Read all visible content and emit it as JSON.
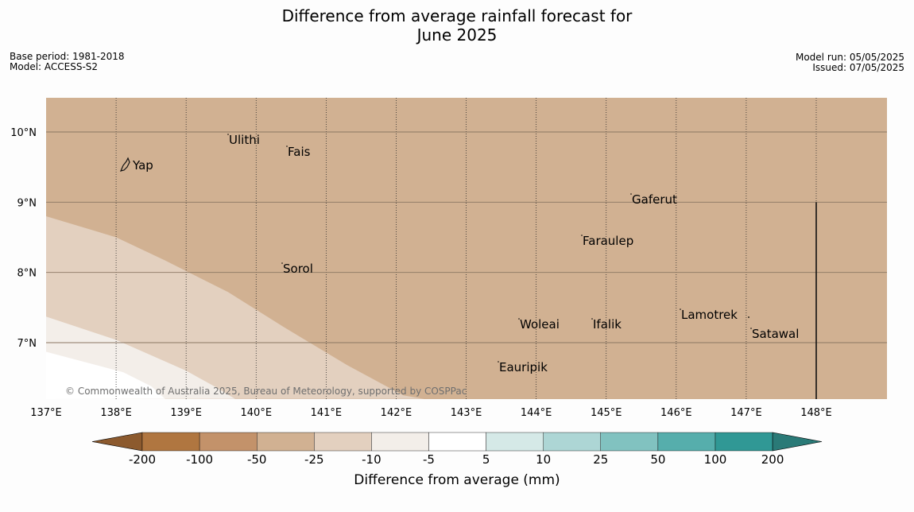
{
  "title_line1": "Difference from average rainfall forecast for",
  "title_line2": "June 2025",
  "meta_left": [
    "Base period: 1981-2018",
    "Model: ACCESS-S2"
  ],
  "meta_right": [
    "Model run: 05/05/2025",
    "Issued: 07/05/2025"
  ],
  "copyright": "© Commonwealth of Australia 2025, Bureau of Meteorology, supported by COSPPac",
  "colors": {
    "background_land": "#d1b192",
    "band_m25": "#e3d0bf",
    "band_m10": "#f3eee9",
    "grid_dotted": "#2a2a2a",
    "grid_solid": "#8b7763"
  },
  "map_extent": {
    "lon": [
      137,
      149
    ],
    "lat": [
      6.2,
      10.5
    ]
  },
  "lon_ticks": [
    "137°E",
    "138°E",
    "139°E",
    "140°E",
    "141°E",
    "142°E",
    "143°E",
    "144°E",
    "145°E",
    "146°E",
    "147°E",
    "148°E"
  ],
  "lat_ticks": [
    "10°N",
    "9°N",
    "8°N",
    "7°N"
  ],
  "places": [
    {
      "name": "Yap"
    },
    {
      "name": "Ulithi"
    },
    {
      "name": "Fais"
    },
    {
      "name": "Gaferut"
    },
    {
      "name": "Faraulep"
    },
    {
      "name": "Sorol"
    },
    {
      "name": "Woleai"
    },
    {
      "name": "Ifalik"
    },
    {
      "name": "Lamotrek"
    },
    {
      "name": "Satawal"
    },
    {
      "name": "Eauripik"
    }
  ],
  "colorbar": {
    "label": "Difference from average (mm)",
    "ticks": [
      "-200",
      "-100",
      "-50",
      "-25",
      "-10",
      "-5",
      "5",
      "10",
      "25",
      "50",
      "100",
      "200"
    ],
    "colors": [
      "#8c5a2e",
      "#b07640",
      "#c3926a",
      "#d1b192",
      "#e3d0bf",
      "#f3eee9",
      "#ffffff",
      "#d5e9e7",
      "#add6d5",
      "#81c2c0",
      "#56aeac",
      "#309895",
      "#2a7a77"
    ]
  }
}
